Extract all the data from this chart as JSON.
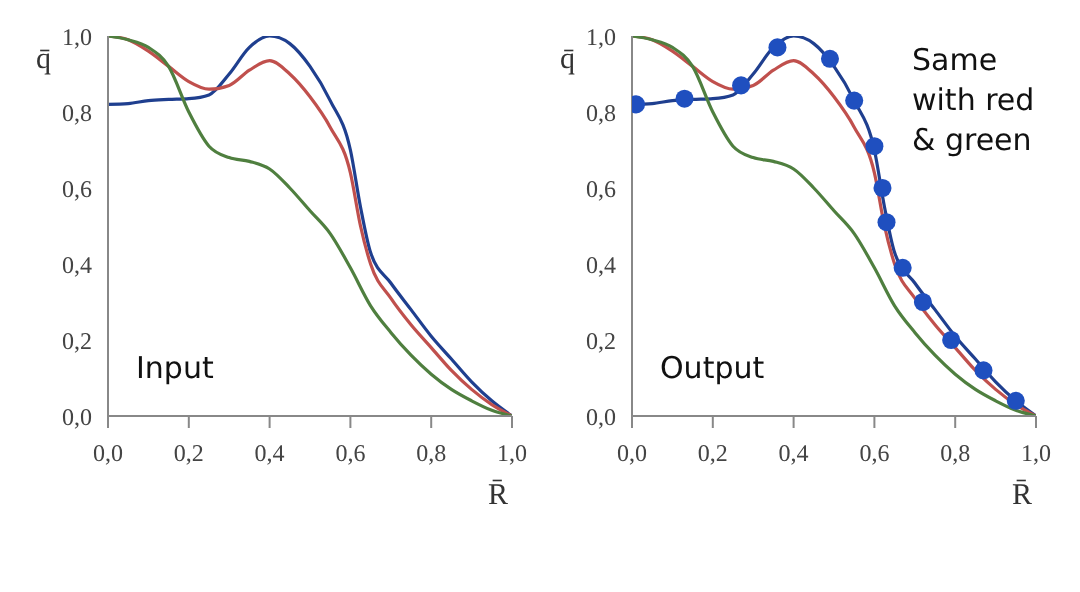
{
  "chart_data": [
    {
      "type": "line",
      "xlabel": "R̄",
      "ylabel": "q̄",
      "annotations": [
        "Input"
      ],
      "xlim": [
        0,
        1
      ],
      "ylim": [
        0,
        1
      ],
      "xticks": [
        {
          "value": 0,
          "label": "0,0"
        },
        {
          "value": 0.2,
          "label": "0,2"
        },
        {
          "value": 0.4,
          "label": "0,4"
        },
        {
          "value": 0.6,
          "label": "0,6"
        },
        {
          "value": 0.8,
          "label": "0,8"
        },
        {
          "value": 1,
          "label": "1,0"
        }
      ],
      "yticks": [
        {
          "value": 0,
          "label": "0,0"
        },
        {
          "value": 0.2,
          "label": "0,2"
        },
        {
          "value": 0.4,
          "label": "0,4"
        },
        {
          "value": 0.6,
          "label": "0,6"
        },
        {
          "value": 0.8,
          "label": "0,8"
        },
        {
          "value": 1,
          "label": "1,0"
        }
      ],
      "marker": "none",
      "x": [
        0,
        0.05,
        0.1,
        0.15,
        0.2,
        0.25,
        0.3,
        0.35,
        0.4,
        0.45,
        0.5,
        0.55,
        0.6,
        0.625,
        0.65,
        0.7,
        0.75,
        0.8,
        0.85,
        0.9,
        0.95,
        1
      ],
      "series": [
        {
          "color": "#1f3f8f",
          "values": [
            0.82,
            0.822,
            0.83,
            0.833,
            0.835,
            0.845,
            0.9,
            0.97,
            1.0,
            0.98,
            0.92,
            0.83,
            0.7,
            0.55,
            0.43,
            0.35,
            0.28,
            0.21,
            0.15,
            0.09,
            0.04,
            0
          ]
        },
        {
          "color": "#c0504d",
          "values": [
            1.0,
            0.99,
            0.96,
            0.92,
            0.88,
            0.86,
            0.87,
            0.91,
            0.935,
            0.9,
            0.84,
            0.76,
            0.64,
            0.5,
            0.4,
            0.31,
            0.24,
            0.18,
            0.12,
            0.07,
            0.03,
            0
          ]
        },
        {
          "color": "#4f7f3f",
          "x": [
            0,
            0.05,
            0.1,
            0.15,
            0.2,
            0.25,
            0.3,
            0.35,
            0.4,
            0.45,
            0.5,
            0.55,
            0.6,
            0.65,
            0.7,
            0.75,
            0.8,
            0.85,
            0.9,
            0.95,
            1
          ],
          "values": [
            1.0,
            0.99,
            0.97,
            0.92,
            0.8,
            0.71,
            0.68,
            0.67,
            0.65,
            0.6,
            0.54,
            0.48,
            0.39,
            0.29,
            0.22,
            0.16,
            0.11,
            0.07,
            0.04,
            0.015,
            0
          ]
        }
      ]
    },
    {
      "type": "line",
      "xlabel": "R̄",
      "ylabel": "q̄",
      "annotations": [
        "Output",
        "Same with red & green"
      ],
      "xlim": [
        0,
        1
      ],
      "ylim": [
        0,
        1
      ],
      "xticks": [
        {
          "value": 0,
          "label": "0,0"
        },
        {
          "value": 0.2,
          "label": "0,2"
        },
        {
          "value": 0.4,
          "label": "0,4"
        },
        {
          "value": 0.6,
          "label": "0,6"
        },
        {
          "value": 0.8,
          "label": "0,8"
        },
        {
          "value": 1,
          "label": "1,0"
        }
      ],
      "yticks": [
        {
          "value": 0,
          "label": "0,0"
        },
        {
          "value": 0.2,
          "label": "0,2"
        },
        {
          "value": 0.4,
          "label": "0,4"
        },
        {
          "value": 0.6,
          "label": "0,6"
        },
        {
          "value": 0.8,
          "label": "0,8"
        },
        {
          "value": 1,
          "label": "1,0"
        }
      ],
      "marker": "none",
      "x": [
        0,
        0.05,
        0.1,
        0.15,
        0.2,
        0.25,
        0.3,
        0.35,
        0.4,
        0.45,
        0.5,
        0.55,
        0.6,
        0.625,
        0.65,
        0.7,
        0.75,
        0.8,
        0.85,
        0.9,
        0.95,
        1
      ],
      "series": [
        {
          "color": "#1f3f8f",
          "values": [
            0.82,
            0.822,
            0.83,
            0.833,
            0.835,
            0.845,
            0.9,
            0.97,
            1.0,
            0.98,
            0.92,
            0.83,
            0.7,
            0.55,
            0.43,
            0.35,
            0.28,
            0.21,
            0.15,
            0.09,
            0.04,
            0
          ]
        },
        {
          "color": "#c0504d",
          "values": [
            1.0,
            0.99,
            0.96,
            0.92,
            0.88,
            0.86,
            0.87,
            0.91,
            0.935,
            0.9,
            0.84,
            0.76,
            0.64,
            0.5,
            0.4,
            0.31,
            0.24,
            0.18,
            0.12,
            0.07,
            0.03,
            0
          ]
        },
        {
          "color": "#4f7f3f",
          "x": [
            0,
            0.05,
            0.1,
            0.15,
            0.2,
            0.25,
            0.3,
            0.35,
            0.4,
            0.45,
            0.5,
            0.55,
            0.6,
            0.65,
            0.7,
            0.75,
            0.8,
            0.85,
            0.9,
            0.95,
            1
          ],
          "values": [
            1.0,
            0.99,
            0.97,
            0.92,
            0.8,
            0.71,
            0.68,
            0.67,
            0.65,
            0.6,
            0.54,
            0.48,
            0.39,
            0.29,
            0.22,
            0.16,
            0.11,
            0.07,
            0.04,
            0.015,
            0
          ]
        },
        {
          "type": "scatter",
          "marker": "circle",
          "color": "#1f4fbf",
          "x": [
            0.01,
            0.13,
            0.27,
            0.36,
            0.49,
            0.55,
            0.6,
            0.62,
            0.63,
            0.67,
            0.72,
            0.79,
            0.87,
            0.95
          ],
          "values": [
            0.82,
            0.835,
            0.87,
            0.97,
            0.94,
            0.83,
            0.71,
            0.6,
            0.51,
            0.39,
            0.3,
            0.2,
            0.12,
            0.04
          ]
        }
      ]
    }
  ]
}
